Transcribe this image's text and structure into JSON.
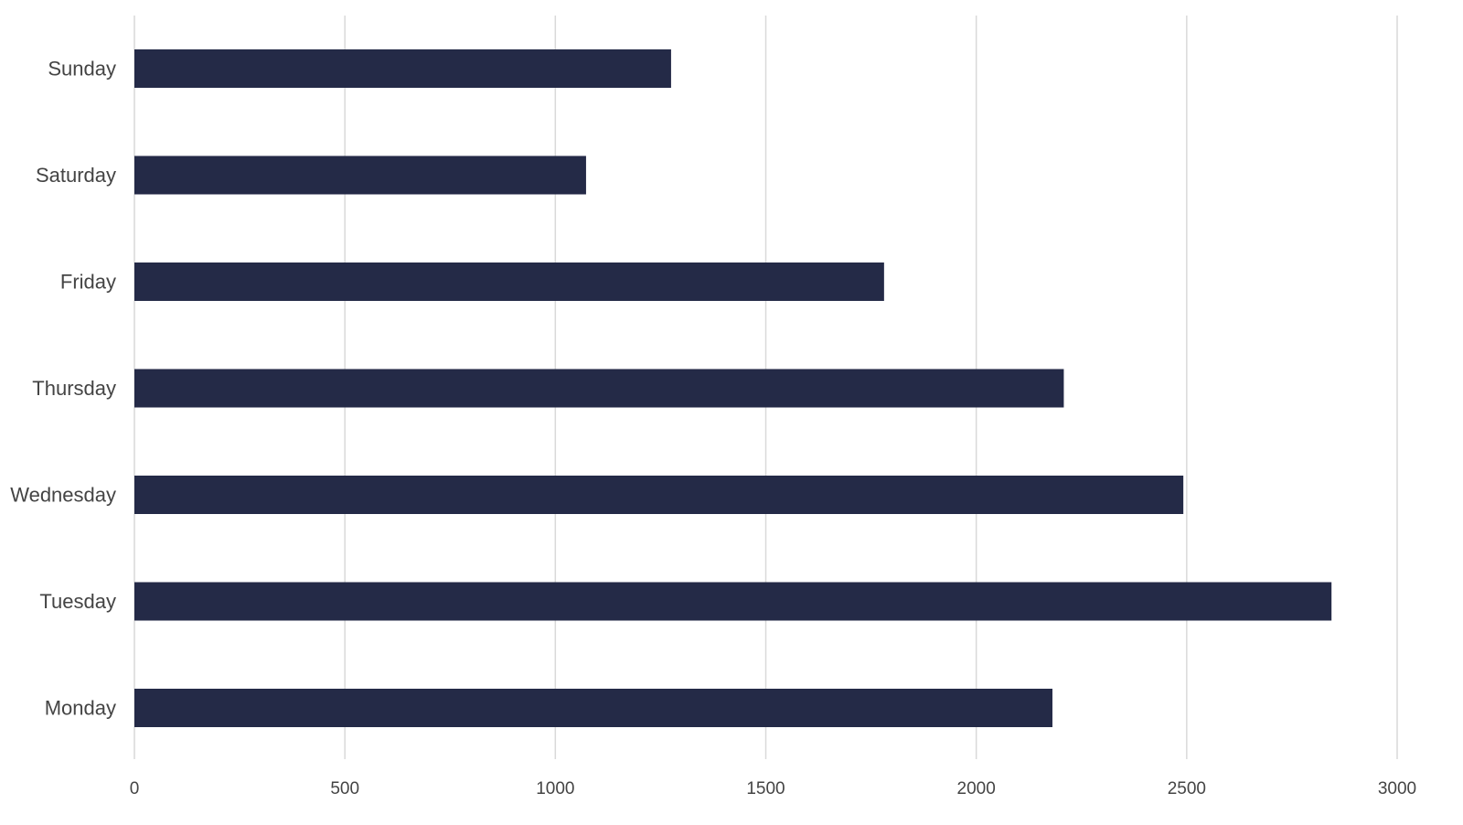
{
  "chart_data": {
    "type": "bar",
    "orientation": "horizontal",
    "categories": [
      "Sunday",
      "Saturday",
      "Friday",
      "Thursday",
      "Wednesday",
      "Tuesday",
      "Monday"
    ],
    "values": [
      1275,
      1073,
      1781,
      2208,
      2492,
      2844,
      2181
    ],
    "xlim": [
      0,
      3000
    ],
    "xticks": [
      "0",
      "500",
      "1000",
      "1500",
      "2000",
      "2500",
      "3000"
    ],
    "title": "",
    "xlabel": "",
    "ylabel": "",
    "grid": "vertical",
    "legend": "none",
    "bar_color": "#242a47",
    "grid_color": "#d9d9d9",
    "text_color": "#444444"
  }
}
